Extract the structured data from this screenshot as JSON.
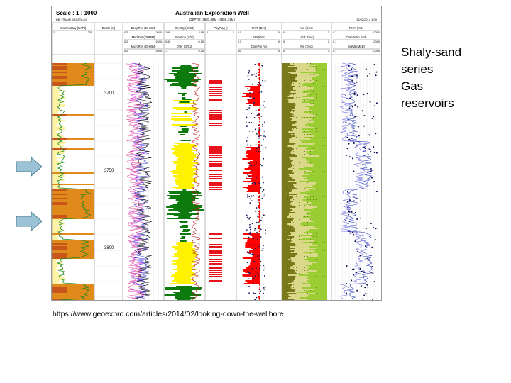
{
  "caption": {
    "lines": [
      "Shaly-sand",
      "series",
      "Gas",
      "reservoirs"
    ]
  },
  "source_url": "https://www.geoexpro.com/articles/2014/02/looking-down-the-wellbore",
  "log": {
    "scale": "Scale : 1 : 1000",
    "well_name": "Australian Exploration Well",
    "well_sub": "DB : TRAIN 04 DATA (1)",
    "depth_range": "DEPTH (3681.46M - 3856.41M)",
    "date": "12/02/2014 1:00",
    "depth_ticks": [
      "3700",
      "3750",
      "3800"
    ],
    "tracks": [
      {
        "name": "GammaRay [GAPI]",
        "min": "1.",
        "max": "200."
      },
      {
        "name": "Depth (M)",
        "min": "",
        "max": ""
      },
      {
        "name": "DeepRes (OHMM)",
        "min": "0.2",
        "max": "2000."
      },
      {
        "name": "MedRes (OHMM)",
        "min": "0.2",
        "max": "2000."
      },
      {
        "name": "MicroRes (OHMM)",
        "min": "0.2",
        "max": "2000."
      },
      {
        "name": "Density (G/C3)",
        "min": "1.95",
        "max": "2.95"
      },
      {
        "name": "Neutron (V/V)",
        "min": "0.45",
        "max": "-0.15"
      },
      {
        "name": "DTer (G/C3)",
        "min": "-1.",
        "max": "0.25"
      },
      {
        "name": "PayFlag ()",
        "min": "0.",
        "max": "1."
      },
      {
        "name": "PHIT (Dec)",
        "min": "0.5",
        "max": "0."
      },
      {
        "name": "PHI (Dec)",
        "min": "0.5",
        "max": "0."
      },
      {
        "name": "CorePhi (%)",
        "min": "50.",
        "max": "0."
      },
      {
        "name": "Vcl (Dec)",
        "min": "0.",
        "max": "1."
      },
      {
        "name": "VSilt (Dec)",
        "min": "0.",
        "max": "1."
      },
      {
        "name": "Rill (Dec)",
        "min": "0.",
        "max": "1."
      },
      {
        "name": "Perm (mD)",
        "min": "0.1",
        "max": "10000"
      },
      {
        "name": "CorePerm (md)",
        "min": "0.1",
        "max": "10000"
      },
      {
        "name": "md/stp(MLD)",
        "min": "0.1",
        "max": "10000"
      }
    ]
  },
  "arrows": [
    {
      "name": "upper-reservoir-arrow",
      "color": "#9cc3d5"
    },
    {
      "name": "lower-reservoir-arrow",
      "color": "#9cc3d5"
    }
  ],
  "colors": {
    "gr_shale": "#e08a1c",
    "gr_sand": "#fdf1a3",
    "density_yellow": "#fff200",
    "neutron_green": "#0d7a0d",
    "pay_red": "#e8141c",
    "phi_red": "#ff0000",
    "vcl_olive": "#7a7a1a",
    "vsilt_green": "#9acd32",
    "perm_blue": "#2b3cb8",
    "res_magenta": "#d32fd3"
  }
}
